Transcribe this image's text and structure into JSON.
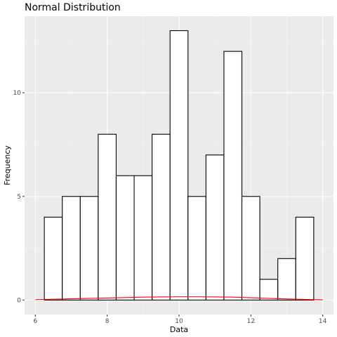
{
  "chart_data": {
    "type": "bar",
    "title": "Normal Distribution",
    "xlabel": "Data",
    "ylabel": "Frequency",
    "xlim": [
      5.7,
      14.3
    ],
    "ylim": [
      -0.7,
      13.7
    ],
    "x_ticks": [
      6,
      8,
      10,
      12,
      14
    ],
    "x_tick_labels": [
      "6",
      "8",
      "10",
      "12",
      "14"
    ],
    "y_ticks": [
      0,
      5,
      10
    ],
    "y_tick_labels": [
      "0",
      "5",
      "10"
    ],
    "grid": true,
    "bin_width": 0.5,
    "bins": [
      {
        "x0": 6.25,
        "x1": 6.75,
        "value": 4
      },
      {
        "x0": 6.75,
        "x1": 7.25,
        "value": 5
      },
      {
        "x0": 7.25,
        "x1": 7.75,
        "value": 5
      },
      {
        "x0": 7.75,
        "x1": 8.25,
        "value": 8
      },
      {
        "x0": 8.25,
        "x1": 8.75,
        "value": 6
      },
      {
        "x0": 8.75,
        "x1": 9.25,
        "value": 6
      },
      {
        "x0": 9.25,
        "x1": 9.75,
        "value": 8
      },
      {
        "x0": 9.75,
        "x1": 10.25,
        "value": 13
      },
      {
        "x0": 10.25,
        "x1": 10.75,
        "value": 5
      },
      {
        "x0": 10.75,
        "x1": 11.25,
        "value": 7
      },
      {
        "x0": 11.25,
        "x1": 11.75,
        "value": 12
      },
      {
        "x0": 11.75,
        "x1": 12.25,
        "value": 5
      },
      {
        "x0": 12.25,
        "x1": 12.75,
        "value": 1
      },
      {
        "x0": 12.75,
        "x1": 13.25,
        "value": 2
      },
      {
        "x0": 13.25,
        "x1": 13.75,
        "value": 4
      }
    ],
    "density_line": {
      "x": [
        6,
        6.5,
        7,
        7.5,
        8,
        8.5,
        9,
        9.5,
        10,
        10.5,
        11,
        11.5,
        12,
        12.5,
        13,
        13.5,
        14
      ],
      "y": [
        0.02,
        0.04,
        0.06,
        0.08,
        0.1,
        0.12,
        0.14,
        0.15,
        0.16,
        0.16,
        0.15,
        0.14,
        0.11,
        0.08,
        0.05,
        0.03,
        0.01
      ]
    },
    "colors": {
      "panel_background": "#ebebeb",
      "grid_major": "#ffffff",
      "grid_minor": "#f5f5f5",
      "bar_fill": "#ffffff",
      "bar_stroke": "#000000",
      "density_line": "#ff0000",
      "tick_label": "#4d4d4d"
    }
  }
}
